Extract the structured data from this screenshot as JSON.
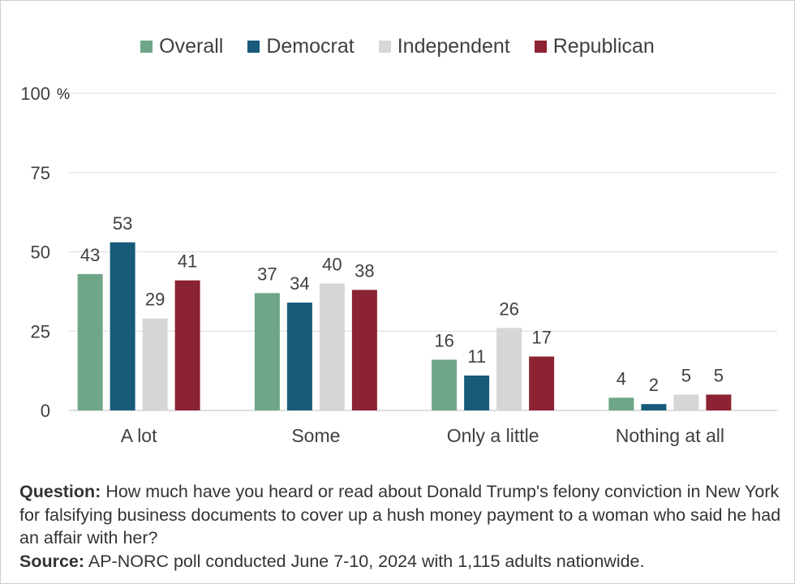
{
  "chart_data": {
    "type": "bar",
    "categories": [
      "A lot",
      "Some",
      "Only a little",
      "Nothing at all"
    ],
    "series": [
      {
        "name": "Overall",
        "color": "#6fa588",
        "values": [
          43,
          37,
          16,
          4
        ]
      },
      {
        "name": "Democrat",
        "color": "#175a7a",
        "values": [
          53,
          34,
          11,
          2
        ]
      },
      {
        "name": "Independent",
        "color": "#d6d6d6",
        "values": [
          29,
          40,
          26,
          5
        ]
      },
      {
        "name": "Republican",
        "color": "#8b2332",
        "values": [
          41,
          38,
          17,
          5
        ]
      }
    ],
    "ylim": [
      0,
      100
    ],
    "yticks": [
      "0",
      "25",
      "50",
      "75",
      "100"
    ],
    "yunit": "%",
    "grid": true,
    "legend_position": "top-center"
  },
  "notes": {
    "question_label": "Question:",
    "question_text": "How much have you heard or read about Donald Trump's felony conviction in New York for falsifying business documents to cover up a hush money payment to a woman who said he had an affair with her?",
    "source_label": "Source:",
    "source_text": "AP-NORC poll conducted June 7-10, 2024 with 1,115 adults nationwide."
  }
}
